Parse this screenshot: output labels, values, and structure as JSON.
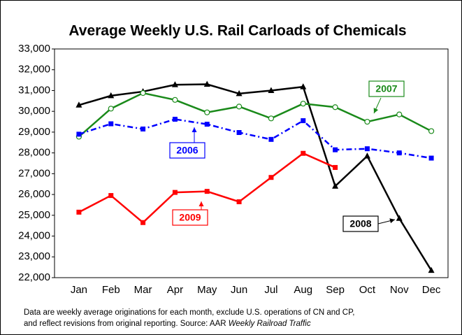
{
  "chart_data": {
    "type": "line",
    "title": "Average Weekly U.S. Rail Carloads of Chemicals",
    "categories": [
      "Jan",
      "Feb",
      "Mar",
      "Apr",
      "May",
      "Jun",
      "Jul",
      "Aug",
      "Sep",
      "Oct",
      "Nov",
      "Dec"
    ],
    "series": [
      {
        "name": "2008",
        "color": "#000000",
        "marker": "triangle",
        "dash": "solid",
        "values": [
          30300,
          30750,
          30950,
          31280,
          31300,
          30850,
          31000,
          31180,
          26400,
          27850,
          24850,
          22350
        ]
      },
      {
        "name": "2007",
        "color": "#1a8a1a",
        "marker": "open-circle",
        "dash": "solid",
        "values": [
          28780,
          30130,
          30880,
          30550,
          29950,
          30230,
          29660,
          30370,
          30200,
          29500,
          29850,
          29050
        ]
      },
      {
        "name": "2006",
        "color": "#0000ff",
        "marker": "square",
        "dash": "dashdot",
        "values": [
          28900,
          29400,
          29150,
          29620,
          29380,
          28980,
          28650,
          29550,
          28150,
          28200,
          28000,
          27750
        ]
      },
      {
        "name": "2009",
        "color": "#ff0000",
        "marker": "square",
        "dash": "solid",
        "values": [
          25150,
          25950,
          24650,
          26100,
          26150,
          25650,
          26820,
          27980,
          27300,
          null,
          null,
          null
        ]
      }
    ],
    "ylim": [
      22000,
      33000
    ],
    "yticks": [
      {
        "value": 22000,
        "label": "22,000"
      },
      {
        "value": 23000,
        "label": "23,000"
      },
      {
        "value": 24000,
        "label": "24,000"
      },
      {
        "value": 25000,
        "label": "25,000"
      },
      {
        "value": 26000,
        "label": "26,000"
      },
      {
        "value": 27000,
        "label": "27,000"
      },
      {
        "value": 28000,
        "label": "28,000"
      },
      {
        "value": 29000,
        "label": "29,000"
      },
      {
        "value": 30000,
        "label": "30,000"
      },
      {
        "value": 31000,
        "label": "31,000"
      },
      {
        "value": 32000,
        "label": "32,000"
      },
      {
        "value": 33000,
        "label": "33,000"
      }
    ],
    "grid": false,
    "note": [
      "Data are weekly average originations for each month, exclude U.S. operations of CN and CP,",
      "and reflect revisions from original reporting.  Source: AAR"
    ],
    "note_source": "Weekly Railroad Traffic"
  }
}
